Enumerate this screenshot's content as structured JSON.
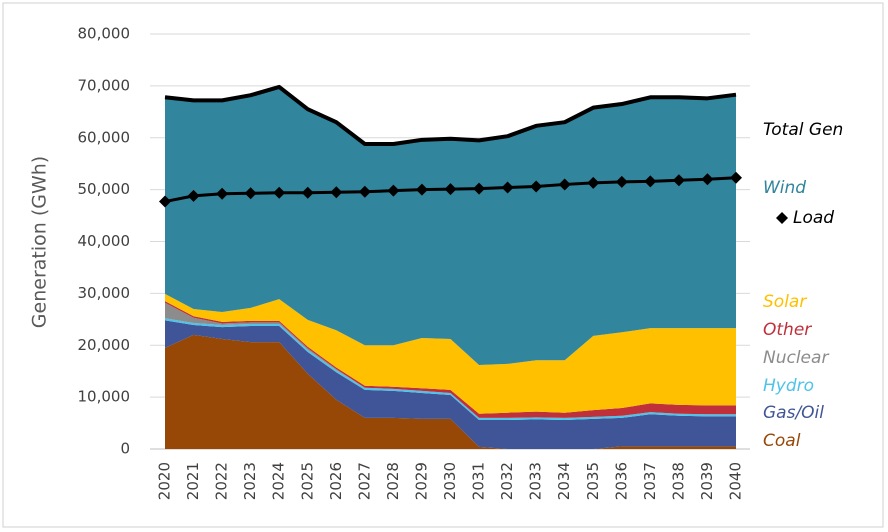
{
  "chart_data": {
    "type": "stacked_area",
    "y_label": "Generation (GWh)",
    "categories": [
      "2020",
      "2021",
      "2022",
      "2023",
      "2024",
      "2025",
      "2026",
      "2027",
      "2028",
      "2029",
      "2030",
      "2031",
      "2032",
      "2033",
      "2034",
      "2035",
      "2036",
      "2037",
      "2038",
      "2039",
      "2040"
    ],
    "ylim": [
      0,
      80000
    ],
    "yticks": [
      0,
      {
        "value": 10000,
        "label": "10,000"
      },
      {
        "value": 20000,
        "label": "20,000"
      },
      {
        "value": 30000,
        "label": "30,000"
      },
      {
        "value": 40000,
        "label": "40,000"
      },
      {
        "value": 50000,
        "label": "50,000"
      },
      {
        "value": 60000,
        "label": "60,000"
      },
      {
        "value": 70000,
        "label": "70,000"
      },
      {
        "value": 80000,
        "label": "80,000"
      }
    ],
    "grid": true,
    "series": [
      {
        "name": "Coal",
        "color": "#974706",
        "values": [
          19500,
          22000,
          21200,
          20600,
          20600,
          14500,
          9500,
          6000,
          6000,
          5800,
          5800,
          400,
          0,
          0,
          0,
          0,
          500,
          500,
          500,
          500,
          500
        ]
      },
      {
        "name": "Gas/Oil",
        "color": "#3f5597",
        "values": [
          5300,
          1900,
          2300,
          3100,
          3100,
          4200,
          5300,
          5400,
          5200,
          5000,
          4600,
          5200,
          5600,
          5700,
          5600,
          5800,
          5500,
          6200,
          5900,
          5800,
          5800
        ]
      },
      {
        "name": "Hydro",
        "color": "#4fc3e8",
        "values": [
          400,
          400,
          400,
          400,
          400,
          400,
          400,
          400,
          400,
          400,
          400,
          400,
          400,
          400,
          400,
          400,
          400,
          400,
          400,
          400,
          400
        ]
      },
      {
        "name": "Nuclear",
        "color": "#8c8c8c",
        "values": [
          3000,
          1000,
          300,
          300,
          300,
          300,
          200,
          0,
          0,
          0,
          0,
          0,
          0,
          0,
          0,
          0,
          0,
          0,
          0,
          0,
          0
        ]
      },
      {
        "name": "Other",
        "color": "#c0303b",
        "values": [
          300,
          300,
          300,
          300,
          300,
          300,
          300,
          400,
          400,
          500,
          600,
          800,
          1000,
          1100,
          1000,
          1300,
          1500,
          1700,
          1700,
          1700,
          1700
        ]
      },
      {
        "name": "Solar",
        "color": "#ffc000",
        "values": [
          1400,
          1400,
          1900,
          2500,
          4200,
          5200,
          7200,
          7800,
          8000,
          9700,
          9800,
          9400,
          9400,
          9900,
          10100,
          14300,
          14600,
          14500,
          14800,
          14900,
          14900
        ]
      },
      {
        "name": "Wind",
        "color": "#31859c",
        "values": [
          37900,
          40200,
          40800,
          41000,
          40900,
          40600,
          40100,
          38800,
          38800,
          38200,
          38600,
          43300,
          43900,
          45200,
          45900,
          44000,
          44000,
          44500,
          44500,
          44300,
          45000
        ]
      },
      {
        "name": "Total Gen",
        "color": "#000000",
        "kind": "line",
        "values": [
          67800,
          67200,
          67200,
          68200,
          69800,
          65500,
          63000,
          58800,
          58800,
          59600,
          59800,
          59500,
          60300,
          62300,
          63000,
          65800,
          66500,
          67800,
          67800,
          67600,
          68300
        ]
      },
      {
        "name": "Load",
        "color": "#000000",
        "kind": "line",
        "marker": "diamond",
        "values": [
          47700,
          48800,
          49200,
          49300,
          49400,
          49400,
          49500,
          49600,
          49800,
          50000,
          50100,
          50200,
          50400,
          50600,
          51000,
          51300,
          51500,
          51600,
          51800,
          52000,
          52300
        ]
      }
    ]
  }
}
